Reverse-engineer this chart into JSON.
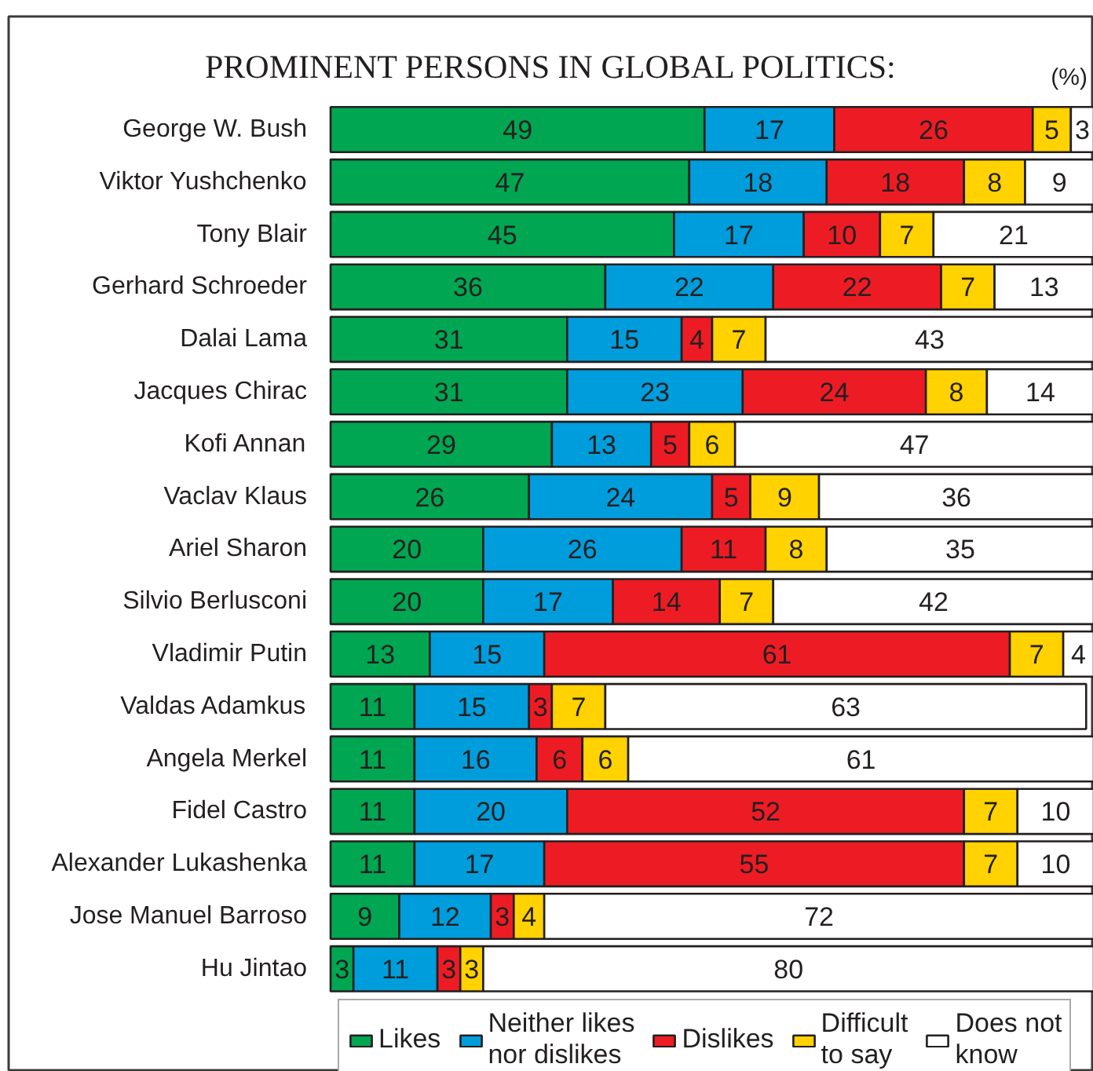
{
  "chart_data": {
    "type": "bar",
    "orientation": "horizontal",
    "stacked": true,
    "title": "PROMINENT PERSONS IN GLOBAL POLITICS:",
    "annotations": [
      "(%)"
    ],
    "categories": [
      "George W. Bush",
      "Viktor Yushchenko",
      "Tony Blair",
      "Gerhard Schroeder",
      "Dalai Lama",
      "Jacques Chirac",
      "Kofi Annan",
      "Vaclav Klaus",
      "Ariel Sharon",
      "Silvio Berlusconi",
      "Vladimir Putin",
      "Valdas Adamkus",
      "Angela Merkel",
      "Fidel Castro",
      "Alexander Lukashenka",
      "Jose Manuel Barroso",
      "Hu Jintao"
    ],
    "series": [
      {
        "name": "Likes",
        "color": "#00a651",
        "values": [
          49,
          47,
          45,
          36,
          31,
          31,
          29,
          26,
          20,
          20,
          13,
          11,
          11,
          11,
          11,
          9,
          3
        ]
      },
      {
        "name": "Neither likes nor dislikes",
        "color": "#009ddc",
        "values": [
          17,
          18,
          17,
          22,
          15,
          23,
          13,
          24,
          26,
          17,
          15,
          15,
          16,
          20,
          17,
          12,
          11
        ]
      },
      {
        "name": "Dislikes",
        "color": "#ed1c24",
        "values": [
          26,
          18,
          10,
          22,
          4,
          24,
          5,
          5,
          11,
          14,
          61,
          3,
          6,
          52,
          55,
          3,
          3
        ]
      },
      {
        "name": "Difficult to say",
        "color": "#ffd200",
        "values": [
          5,
          8,
          7,
          7,
          7,
          8,
          6,
          9,
          8,
          7,
          7,
          7,
          6,
          7,
          7,
          4,
          3
        ]
      },
      {
        "name": "Does not know",
        "color": "#ffffff",
        "values": [
          3,
          9,
          21,
          13,
          43,
          14,
          47,
          36,
          35,
          42,
          4,
          63,
          61,
          10,
          10,
          72,
          80
        ]
      }
    ],
    "data_labels": true,
    "legend": "bottom",
    "grid": false
  }
}
